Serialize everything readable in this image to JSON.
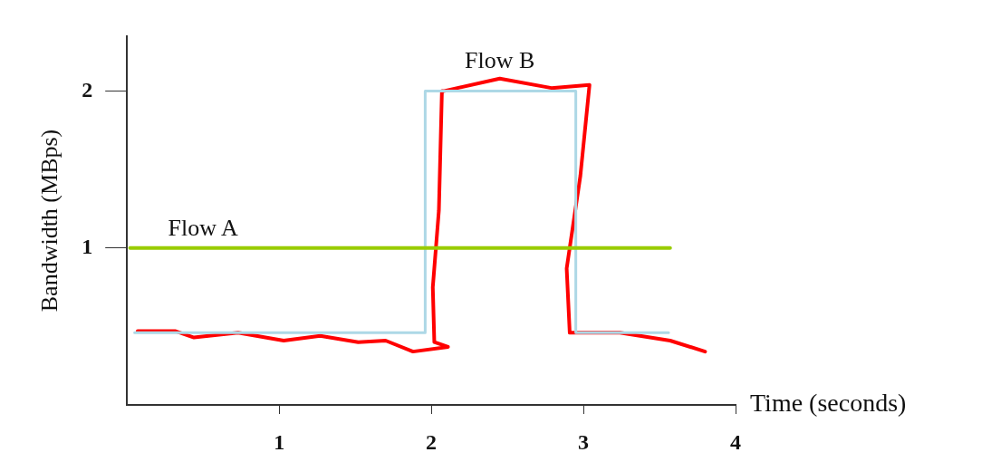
{
  "chart_data": {
    "type": "line",
    "xlabel": "Time (seconds)",
    "ylabel": "Bandwidth (MBps)",
    "xlim": [
      0,
      4
    ],
    "xticks": [
      1,
      2,
      3,
      4
    ],
    "ylim": [
      0,
      2.35
    ],
    "yticks": [
      1,
      2
    ],
    "grid": false,
    "legend": false,
    "marker": "none",
    "line_style": "solid",
    "series": [
      {
        "type": "line",
        "name": "Flow A",
        "color": "#99cc00",
        "x": [
          0.02,
          3.57
        ],
        "values": [
          1,
          1
        ]
      },
      {
        "type": "step",
        "color": "#add8e6",
        "x": [
          0.05,
          1.96,
          2.95,
          3.56
        ],
        "values": [
          0.46,
          2,
          0.46,
          0.46
        ]
      },
      {
        "type": "line",
        "name": "Flow B",
        "color": "#ff0000",
        "x": [
          0.07,
          0.32,
          0.44,
          0.73,
          1.03,
          1.27,
          1.52,
          1.7,
          1.88,
          2.11,
          2.02,
          2.01,
          2.05,
          2.07,
          2.08,
          2.45,
          2.79,
          3.04,
          2.98,
          2.89,
          2.91,
          3.24,
          3.57,
          3.8
        ],
        "values": [
          0.47,
          0.47,
          0.43,
          0.46,
          0.41,
          0.44,
          0.4,
          0.41,
          0.34,
          0.37,
          0.4,
          0.75,
          1.24,
          2,
          2,
          2.08,
          2.02,
          2.04,
          1.46,
          0.87,
          0.46,
          0.46,
          0.41,
          0.34
        ]
      }
    ]
  }
}
